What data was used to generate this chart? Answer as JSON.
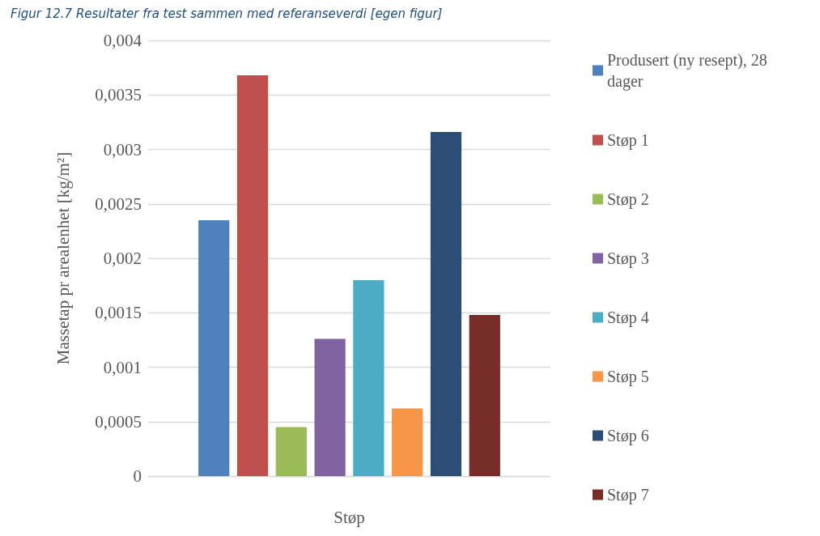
{
  "chart_data": {
    "type": "bar",
    "title": "Figur 12.7 Resultater fra test sammen med referanseverdi [egen figur]",
    "xlabel": "Støp",
    "ylabel": "Massetap pr arealenhet [kg/m²]",
    "categories": [
      null
    ],
    "series": [
      {
        "name": "Produsert (ny resept), 28 dager",
        "color": "#4f81bd",
        "values": [
          0.00235
        ]
      },
      {
        "name": "Støp 1",
        "color": "#c0504d",
        "values": [
          0.00368
        ]
      },
      {
        "name": "Støp 2",
        "color": "#9bbb59",
        "values": [
          0.00045
        ]
      },
      {
        "name": "Støp 3",
        "color": "#8064a2",
        "values": [
          0.00126
        ]
      },
      {
        "name": "Støp 4",
        "color": "#4bacc6",
        "values": [
          0.0018
        ]
      },
      {
        "name": "Støp 5",
        "color": "#f79646",
        "values": [
          0.00062
        ]
      },
      {
        "name": "Støp 6",
        "color": "#2c4d75",
        "values": [
          0.00316
        ]
      },
      {
        "name": "Støp 7",
        "color": "#772c2a",
        "values": [
          0.00148
        ]
      }
    ],
    "ylim": [
      0,
      0.004
    ],
    "yticks": [
      {
        "value": 0,
        "label": "0"
      },
      {
        "value": 0.0005,
        "label": "0,0005"
      },
      {
        "value": 0.001,
        "label": "0,001"
      },
      {
        "value": 0.0015,
        "label": "0,0015"
      },
      {
        "value": 0.002,
        "label": "0,002"
      },
      {
        "value": 0.0025,
        "label": "0,0025"
      },
      {
        "value": 0.003,
        "label": "0,003"
      },
      {
        "value": 0.0035,
        "label": "0,0035"
      },
      {
        "value": 0.004,
        "label": "0,004"
      }
    ],
    "grid": "y",
    "legend": "right"
  }
}
